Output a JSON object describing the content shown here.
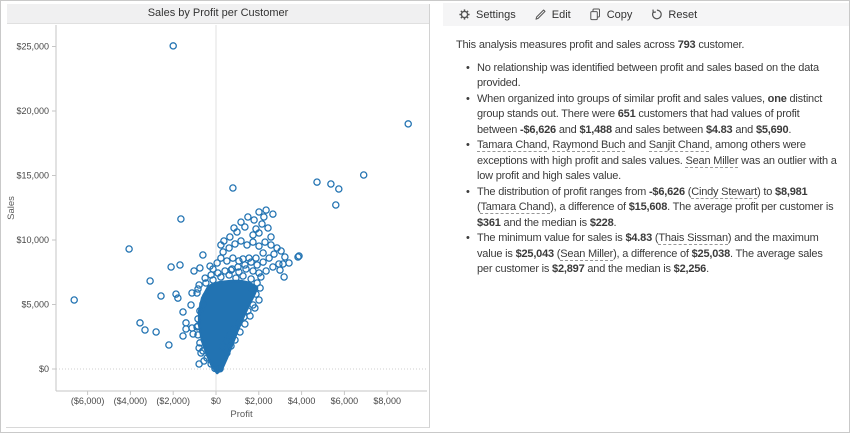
{
  "chart_data": {
    "type": "scatter",
    "title": "Sales by Profit per Customer",
    "xlabel": "Profit",
    "ylabel": "Sales",
    "xlim": [
      -7480,
      9860
    ],
    "ylim": [
      -1710,
      26670
    ],
    "legend": "none",
    "grid": "zero-lines-only",
    "marker": {
      "shape": "open-circle",
      "color": "#2273b2"
    },
    "x_ticks": [
      {
        "label": "($6,000)",
        "value": -6000
      },
      {
        "label": "($4,000)",
        "value": -4000
      },
      {
        "label": "($2,000)",
        "value": -2000
      },
      {
        "label": "$0",
        "value": 0
      },
      {
        "label": "$2,000",
        "value": 2000
      },
      {
        "label": "$4,000",
        "value": 4000
      },
      {
        "label": "$6,000",
        "value": 6000
      },
      {
        "label": "$8,000",
        "value": 8000
      }
    ],
    "y_ticks": [
      {
        "label": "$25,000",
        "value": 25000
      },
      {
        "label": "$20,000",
        "value": 20000
      },
      {
        "label": "$15,000",
        "value": 15000
      },
      {
        "label": "$10,000",
        "value": 10000
      },
      {
        "label": "$5,000",
        "value": 5000
      },
      {
        "label": "$0",
        "value": 0
      }
    ],
    "named_points": [
      {
        "name": "Sean Miller",
        "profit": -2000,
        "sales": 25043
      },
      {
        "name": "Tamara Chand",
        "profit": 8981,
        "sales": 19000
      },
      {
        "name": "Raymond Buch",
        "profit": 6900,
        "sales": 15040
      },
      {
        "name": "Sanjit Chand",
        "profit": 5740,
        "sales": 13950
      },
      {
        "name": "Cindy Stewart",
        "profit": -6626,
        "sales": 5350
      }
    ],
    "points": [
      [
        790,
        14030
      ],
      [
        4720,
        14490
      ],
      [
        5370,
        14340
      ],
      [
        5600,
        12710
      ],
      [
        3880,
        8760
      ],
      [
        3130,
        8140
      ],
      [
        -1640,
        11630
      ],
      [
        -4060,
        9300
      ],
      [
        840,
        10930
      ],
      [
        1170,
        11390
      ],
      [
        1870,
        10850
      ],
      [
        1730,
        10390
      ],
      [
        2010,
        10540
      ],
      [
        2570,
        10230
      ],
      [
        2010,
        12170
      ],
      [
        2340,
        12320
      ],
      [
        2660,
        12010
      ],
      [
        230,
        9610
      ],
      [
        -610,
        8840
      ],
      [
        -280,
        7980
      ],
      [
        -750,
        7830
      ],
      [
        -2100,
        7910
      ],
      [
        -1680,
        8060
      ],
      [
        -1030,
        7600
      ],
      [
        700,
        7670
      ],
      [
        1030,
        7910
      ],
      [
        1260,
        8530
      ],
      [
        1540,
        8600
      ],
      [
        1870,
        8600
      ],
      [
        2200,
        8990
      ],
      [
        2710,
        8910
      ],
      [
        3830,
        8680
      ],
      [
        -1870,
        5810
      ],
      [
        -3550,
        3570
      ],
      [
        -3320,
        3020
      ],
      [
        -2800,
        2870
      ],
      [
        -2200,
        1860
      ],
      [
        -1780,
        5500
      ],
      [
        -1170,
        4960
      ],
      [
        -1540,
        4420
      ],
      [
        -1120,
        5890
      ],
      [
        -840,
        6200
      ],
      [
        -1400,
        3570
      ],
      [
        -1120,
        3180
      ],
      [
        -840,
        3330
      ],
      [
        -1400,
        3100
      ],
      [
        -1070,
        2710
      ],
      [
        -1540,
        2560
      ],
      [
        -790,
        1630
      ],
      [
        -700,
        1240
      ],
      [
        -560,
        620
      ],
      [
        -790,
        390
      ],
      [
        -470,
        6670
      ],
      [
        -140,
        6900
      ],
      [
        230,
        7130
      ],
      [
        610,
        7290
      ],
      [
        930,
        7050
      ],
      [
        1260,
        7210
      ],
      [
        1640,
        6980
      ],
      [
        1920,
        6670
      ],
      [
        2100,
        7130
      ],
      [
        1730,
        7600
      ],
      [
        1400,
        7750
      ],
      [
        1070,
        7520
      ],
      [
        750,
        7750
      ],
      [
        420,
        7600
      ],
      [
        90,
        7440
      ],
      [
        -230,
        7290
      ],
      [
        -510,
        7050
      ],
      [
        -790,
        6510
      ],
      [
        -890,
        5890
      ],
      [
        1640,
        6280
      ],
      [
        1870,
        5810
      ],
      [
        2010,
        5350
      ],
      [
        1730,
        4960
      ],
      [
        1490,
        4500
      ],
      [
        1310,
        4030
      ],
      [
        1070,
        3570
      ],
      [
        840,
        3100
      ],
      [
        650,
        2640
      ],
      [
        470,
        2170
      ],
      [
        280,
        1710
      ],
      [
        510,
        1240
      ],
      [
        700,
        1780
      ],
      [
        890,
        2250
      ],
      [
        1120,
        2870
      ],
      [
        1350,
        3490
      ],
      [
        1590,
        4110
      ],
      [
        1820,
        4730
      ],
      [
        2060,
        6280
      ],
      [
        -470,
        5660
      ],
      [
        -610,
        5040
      ],
      [
        -750,
        4500
      ],
      [
        -840,
        3880
      ],
      [
        -890,
        3260
      ],
      [
        -840,
        2640
      ],
      [
        -750,
        2020
      ],
      [
        -610,
        1400
      ],
      [
        -420,
        850
      ],
      [
        -230,
        390
      ],
      [
        -50,
        50
      ],
      [
        190,
        20
      ],
      [
        330,
        9070
      ],
      [
        610,
        9380
      ],
      [
        890,
        9690
      ],
      [
        1170,
        9920
      ],
      [
        1450,
        9610
      ],
      [
        1730,
        9840
      ],
      [
        2010,
        9530
      ],
      [
        2290,
        9840
      ],
      [
        2570,
        9610
      ],
      [
        2850,
        9380
      ],
      [
        2480,
        8600
      ],
      [
        2200,
        8290
      ],
      [
        1920,
        8060
      ],
      [
        1640,
        8290
      ],
      [
        1350,
        8060
      ],
      [
        1070,
        8370
      ],
      [
        790,
        8600
      ],
      [
        510,
        8370
      ],
      [
        230,
        8600
      ],
      [
        50,
        8220
      ],
      [
        -140,
        7750
      ],
      [
        3040,
        9150
      ],
      [
        3220,
        8680
      ],
      [
        3410,
        8220
      ],
      [
        2990,
        7670
      ],
      [
        2660,
        7910
      ],
      [
        2340,
        7600
      ],
      [
        2010,
        7440
      ],
      [
        1490,
        11780
      ],
      [
        1780,
        11550
      ],
      [
        2150,
        11240
      ],
      [
        2430,
        10930
      ],
      [
        2240,
        11780
      ],
      [
        1350,
        11010
      ],
      [
        980,
        10620
      ],
      [
        650,
        10230
      ],
      [
        370,
        9920
      ],
      [
        3180,
        7130
      ],
      [
        2940,
        8140
      ],
      [
        -3080,
        6820
      ],
      [
        -2570,
        5660
      ]
    ],
    "dense_cluster_outline": [
      [
        -370,
        6360
      ],
      [
        -650,
        5500
      ],
      [
        -790,
        4500
      ],
      [
        -790,
        3410
      ],
      [
        -650,
        2170
      ],
      [
        -420,
        1090
      ],
      [
        -190,
        230
      ],
      [
        50,
        -310
      ],
      [
        280,
        0
      ],
      [
        510,
        850
      ],
      [
        750,
        1860
      ],
      [
        980,
        2870
      ],
      [
        1260,
        3950
      ],
      [
        1540,
        4960
      ],
      [
        1780,
        5740
      ],
      [
        1920,
        6280
      ],
      [
        1590,
        6670
      ],
      [
        1170,
        6820
      ],
      [
        700,
        6820
      ],
      [
        190,
        6740
      ],
      [
        -140,
        6590
      ]
    ]
  },
  "toolbar": {
    "items": [
      {
        "icon": "gear-icon",
        "label": "Settings"
      },
      {
        "icon": "pencil-icon",
        "label": "Edit"
      },
      {
        "icon": "copy-icon",
        "label": "Copy"
      },
      {
        "icon": "reset-icon",
        "label": "Reset"
      }
    ]
  },
  "analysis": {
    "intro": [
      {
        "t": "This analysis measures profit and sales across "
      },
      {
        "t": "793",
        "b": true
      },
      {
        "t": " customer."
      }
    ],
    "bullets": [
      [
        {
          "t": "No relationship was identified between profit and sales based on the data provided."
        }
      ],
      [
        {
          "t": "When organized into groups of similar profit and sales values, "
        },
        {
          "t": "one",
          "b": true
        },
        {
          "t": " distinct group stands out. There were "
        },
        {
          "t": "651",
          "b": true
        },
        {
          "t": " customers that had values of profit between "
        },
        {
          "t": "-$6,626",
          "b": true
        },
        {
          "t": " and "
        },
        {
          "t": "$1,488",
          "b": true
        },
        {
          "t": " and sales between "
        },
        {
          "t": "$4.83",
          "b": true
        },
        {
          "t": " and "
        },
        {
          "t": "$5,690",
          "b": true
        },
        {
          "t": "."
        }
      ],
      [
        {
          "t": "Tamara Chand",
          "u": true
        },
        {
          "t": ", "
        },
        {
          "t": "Raymond Buch",
          "u": true
        },
        {
          "t": " and "
        },
        {
          "t": "Sanjit Chand",
          "u": true
        },
        {
          "t": ", among others were exceptions with high profit and sales values. "
        },
        {
          "t": "Sean Miller",
          "u": true
        },
        {
          "t": " was an outlier with a low profit and high sales value."
        }
      ],
      [
        {
          "t": "The distribution of profit ranges from "
        },
        {
          "t": "-$6,626",
          "b": true
        },
        {
          "t": " ("
        },
        {
          "t": "Cindy Stewart",
          "u": true
        },
        {
          "t": ") to "
        },
        {
          "t": "$8,981",
          "b": true
        },
        {
          "t": " ("
        },
        {
          "t": "Tamara Chand",
          "u": true
        },
        {
          "t": "), a difference of "
        },
        {
          "t": "$15,608",
          "b": true
        },
        {
          "t": ". The average profit per customer is "
        },
        {
          "t": "$361",
          "b": true
        },
        {
          "t": " and the median is "
        },
        {
          "t": "$228",
          "b": true
        },
        {
          "t": "."
        }
      ],
      [
        {
          "t": "The minimum value for sales is "
        },
        {
          "t": "$4.83",
          "b": true
        },
        {
          "t": " ("
        },
        {
          "t": "Thais Sissman",
          "u": true
        },
        {
          "t": ") and the maximum value is "
        },
        {
          "t": "$25,043",
          "b": true
        },
        {
          "t": " ("
        },
        {
          "t": "Sean Miller",
          "u": true
        },
        {
          "t": "), a difference of "
        },
        {
          "t": "$25,038",
          "b": true
        },
        {
          "t": ". The average sales per customer is "
        },
        {
          "t": "$2,897",
          "b": true
        },
        {
          "t": " and the median is "
        },
        {
          "t": "$2,256",
          "b": true
        },
        {
          "t": "."
        }
      ]
    ]
  }
}
